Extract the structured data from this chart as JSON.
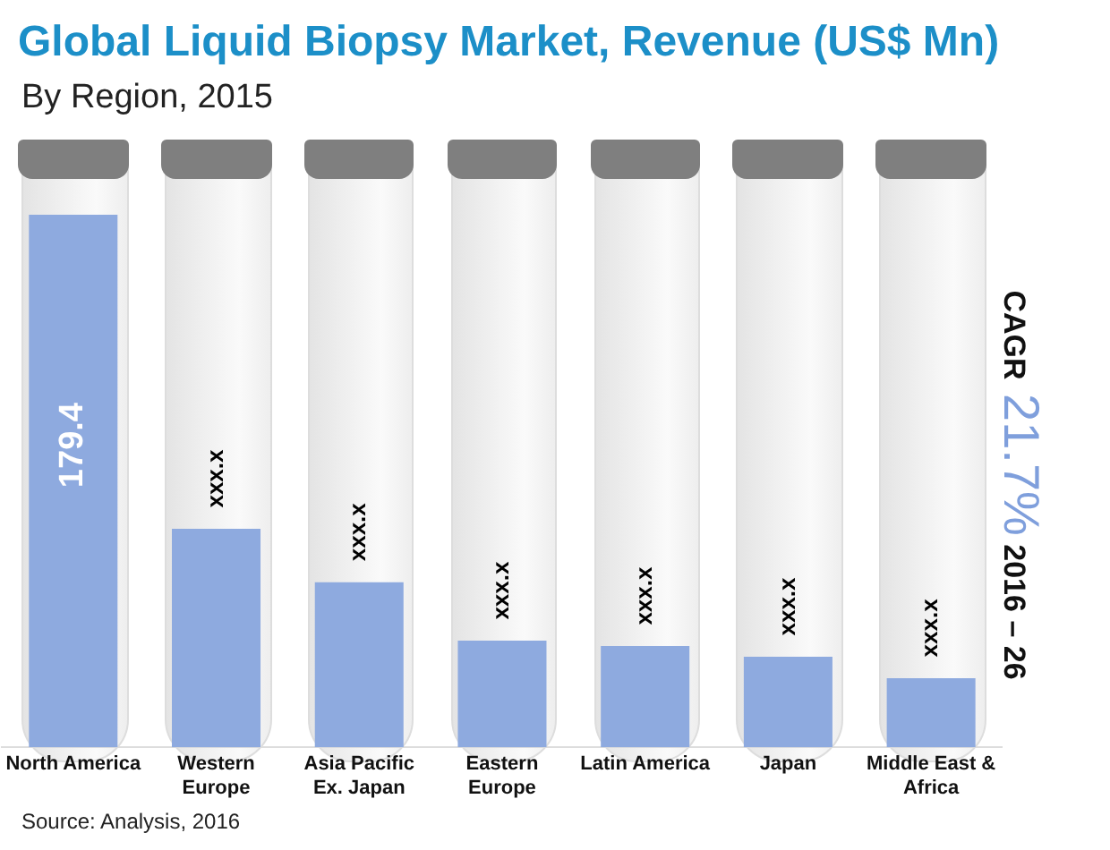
{
  "chart_data": {
    "type": "bar",
    "title": "Global Liquid Biopsy Market, Revenue (US$ Mn)",
    "subtitle": "By Region, 2015",
    "categories": [
      "North America",
      "Western Europe",
      "Asia Pacific Ex. Japan",
      "Eastern Europe",
      "Latin America",
      "Japan",
      "Middle East & Africa"
    ],
    "values": [
      179.4,
      73.6,
      55.6,
      35.9,
      34.1,
      30.5,
      23.3
    ],
    "value_labels": [
      "179.4",
      "xxx.x",
      "xxx.x",
      "xxx.x",
      "xxx.x",
      "xxx.x",
      "xxx.x"
    ],
    "color": "#8eaadf",
    "tick_labels": "x",
    "grid": false,
    "legend": false,
    "annotations": [
      "CAGR 21.7% 2016 – 26",
      "Source: Analysis, 2016"
    ]
  }
}
